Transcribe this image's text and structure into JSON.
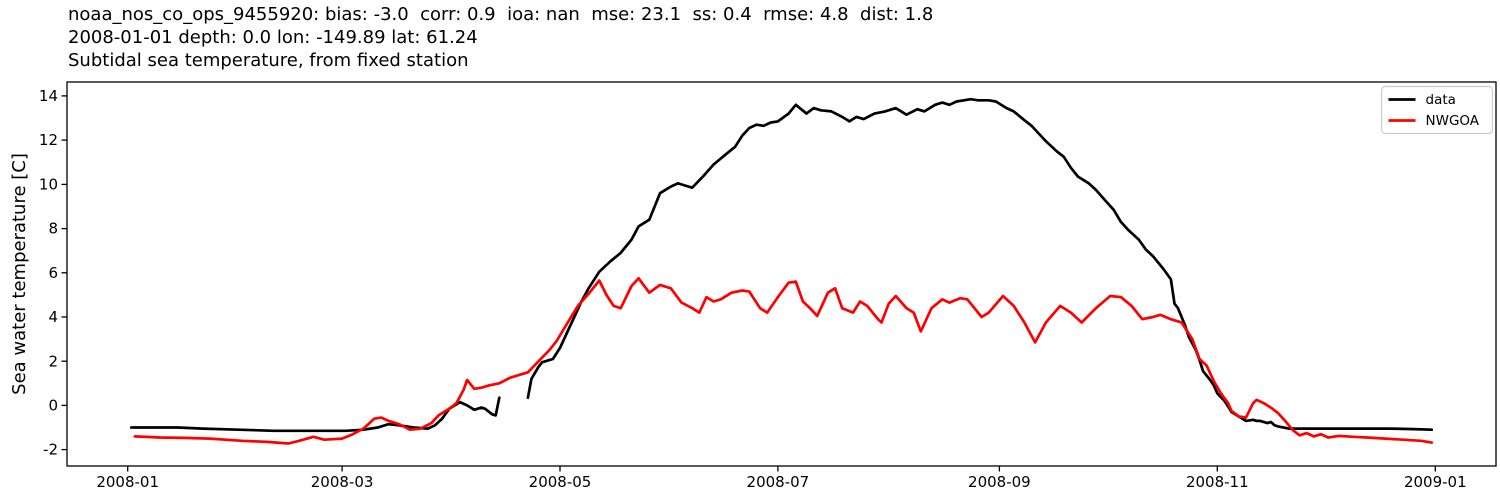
{
  "title": {
    "line1": "noaa_nos_co_ops_9455920: bias: -3.0  corr: 0.9  ioa: nan  mse: 23.1  ss: 0.4  rmse: 4.8  dist: 1.8",
    "line2": "2008-01-01 depth: 0.0 lon: -149.89 lat: 61.24",
    "line3": "Subtidal sea temperature, from fixed station"
  },
  "chart_data": {
    "type": "line",
    "ylabel": "Sea water temperature [C]",
    "xlabel": "",
    "grid": false,
    "legend_position": "upper right",
    "legend_border_color": "#cccccc",
    "ylim": [
      -2.74,
      14.63
    ],
    "xlim": [
      "2007-12-15",
      "2009-01-18"
    ],
    "yticks": [
      -2,
      0,
      2,
      4,
      6,
      8,
      10,
      12,
      14
    ],
    "xticks": [
      {
        "date": "2008-01-01",
        "label": "2008-01"
      },
      {
        "date": "2008-03-01",
        "label": "2008-03"
      },
      {
        "date": "2008-05-01",
        "label": "2008-05"
      },
      {
        "date": "2008-07-01",
        "label": "2008-07"
      },
      {
        "date": "2008-09-01",
        "label": "2008-09"
      },
      {
        "date": "2008-11-01",
        "label": "2008-11"
      },
      {
        "date": "2009-01-01",
        "label": "2009-01"
      }
    ],
    "series": [
      {
        "name": "data",
        "color": "#000000",
        "points": [
          [
            "2008-01-02",
            -1.0
          ],
          [
            "2008-01-08",
            -1.0
          ],
          [
            "2008-01-15",
            -1.0
          ],
          [
            "2008-01-22",
            -1.05
          ],
          [
            "2008-02-01",
            -1.1
          ],
          [
            "2008-02-11",
            -1.15
          ],
          [
            "2008-02-21",
            -1.15
          ],
          [
            "2008-03-02",
            -1.15
          ],
          [
            "2008-03-07",
            -1.1
          ],
          [
            "2008-03-11",
            -1.0
          ],
          [
            "2008-03-14",
            -0.85
          ],
          [
            "2008-03-17",
            -0.9
          ],
          [
            "2008-03-21",
            -1.0
          ],
          [
            "2008-03-25",
            -1.05
          ],
          [
            "2008-03-27",
            -0.9
          ],
          [
            "2008-03-29",
            -0.6
          ],
          [
            "2008-03-31",
            -0.15
          ],
          [
            "2008-04-02",
            0.05
          ],
          [
            "2008-04-03",
            0.15
          ],
          [
            "2008-04-05",
            0.0
          ],
          [
            "2008-04-07",
            -0.2
          ],
          [
            "2008-04-09",
            -0.1
          ],
          [
            "2008-04-10",
            -0.15
          ],
          [
            "2008-04-12",
            -0.4
          ],
          [
            "2008-04-13",
            -0.45
          ],
          [
            "2008-04-14",
            0.35
          ],
          [
            "2008-04-16",
            null
          ],
          [
            "2008-04-22",
            0.35
          ],
          [
            "2008-04-23",
            1.2
          ],
          [
            "2008-04-25",
            1.75
          ],
          [
            "2008-04-26",
            1.95
          ],
          [
            "2008-04-28",
            2.05
          ],
          [
            "2008-04-29",
            2.1
          ],
          [
            "2008-05-01",
            2.6
          ],
          [
            "2008-05-03",
            3.3
          ],
          [
            "2008-05-05",
            4.0
          ],
          [
            "2008-05-07",
            4.7
          ],
          [
            "2008-05-09",
            5.3
          ],
          [
            "2008-05-12",
            6.05
          ],
          [
            "2008-05-15",
            6.5
          ],
          [
            "2008-05-18",
            6.9
          ],
          [
            "2008-05-21",
            7.5
          ],
          [
            "2008-05-23",
            8.1
          ],
          [
            "2008-05-26",
            8.4
          ],
          [
            "2008-05-29",
            9.6
          ],
          [
            "2008-06-01",
            9.9
          ],
          [
            "2008-06-03",
            10.05
          ],
          [
            "2008-06-05",
            9.95
          ],
          [
            "2008-06-07",
            9.85
          ],
          [
            "2008-06-10",
            10.35
          ],
          [
            "2008-06-13",
            10.9
          ],
          [
            "2008-06-16",
            11.3
          ],
          [
            "2008-06-19",
            11.7
          ],
          [
            "2008-06-21",
            12.2
          ],
          [
            "2008-06-23",
            12.55
          ],
          [
            "2008-06-25",
            12.7
          ],
          [
            "2008-06-27",
            12.65
          ],
          [
            "2008-06-29",
            12.8
          ],
          [
            "2008-07-01",
            12.85
          ],
          [
            "2008-07-04",
            13.2
          ],
          [
            "2008-07-06",
            13.6
          ],
          [
            "2008-07-09",
            13.2
          ],
          [
            "2008-07-11",
            13.45
          ],
          [
            "2008-07-13",
            13.35
          ],
          [
            "2008-07-16",
            13.3
          ],
          [
            "2008-07-19",
            13.05
          ],
          [
            "2008-07-21",
            12.85
          ],
          [
            "2008-07-23",
            13.05
          ],
          [
            "2008-07-25",
            12.95
          ],
          [
            "2008-07-28",
            13.2
          ],
          [
            "2008-07-31",
            13.3
          ],
          [
            "2008-08-03",
            13.45
          ],
          [
            "2008-08-06",
            13.15
          ],
          [
            "2008-08-09",
            13.4
          ],
          [
            "2008-08-11",
            13.3
          ],
          [
            "2008-08-14",
            13.6
          ],
          [
            "2008-08-16",
            13.7
          ],
          [
            "2008-08-18",
            13.6
          ],
          [
            "2008-08-20",
            13.75
          ],
          [
            "2008-08-24",
            13.85
          ],
          [
            "2008-08-26",
            13.8
          ],
          [
            "2008-08-29",
            13.8
          ],
          [
            "2008-08-31",
            13.75
          ],
          [
            "2008-09-03",
            13.45
          ],
          [
            "2008-09-05",
            13.3
          ],
          [
            "2008-09-08",
            12.9
          ],
          [
            "2008-09-10",
            12.65
          ],
          [
            "2008-09-12",
            12.3
          ],
          [
            "2008-09-14",
            11.95
          ],
          [
            "2008-09-17",
            11.5
          ],
          [
            "2008-09-19",
            11.25
          ],
          [
            "2008-09-21",
            10.75
          ],
          [
            "2008-09-23",
            10.35
          ],
          [
            "2008-09-26",
            10.05
          ],
          [
            "2008-09-28",
            9.75
          ],
          [
            "2008-10-01",
            9.2
          ],
          [
            "2008-10-03",
            8.85
          ],
          [
            "2008-10-05",
            8.3
          ],
          [
            "2008-10-07",
            7.95
          ],
          [
            "2008-10-10",
            7.5
          ],
          [
            "2008-10-12",
            7.05
          ],
          [
            "2008-10-14",
            6.75
          ],
          [
            "2008-10-17",
            6.15
          ],
          [
            "2008-10-19",
            5.7
          ],
          [
            "2008-10-20",
            4.6
          ],
          [
            "2008-10-21",
            4.4
          ],
          [
            "2008-10-23",
            3.6
          ],
          [
            "2008-10-24",
            3.1
          ],
          [
            "2008-10-26",
            2.5
          ],
          [
            "2008-10-27",
            2.05
          ],
          [
            "2008-10-28",
            1.55
          ],
          [
            "2008-10-30",
            1.15
          ],
          [
            "2008-10-31",
            0.9
          ],
          [
            "2008-11-01",
            0.55
          ],
          [
            "2008-11-03",
            0.2
          ],
          [
            "2008-11-04",
            -0.05
          ],
          [
            "2008-11-05",
            -0.3
          ],
          [
            "2008-11-07",
            -0.5
          ],
          [
            "2008-11-08",
            -0.6
          ],
          [
            "2008-11-09",
            -0.7
          ],
          [
            "2008-11-11",
            -0.65
          ],
          [
            "2008-11-12",
            -0.7
          ],
          [
            "2008-11-13",
            -0.7
          ],
          [
            "2008-11-15",
            -0.8
          ],
          [
            "2008-11-16",
            -0.75
          ],
          [
            "2008-11-17",
            -0.9
          ],
          [
            "2008-11-18",
            -0.95
          ],
          [
            "2008-11-21",
            -1.05
          ],
          [
            "2008-11-28",
            -1.05
          ],
          [
            "2008-12-05",
            -1.05
          ],
          [
            "2008-12-12",
            -1.05
          ],
          [
            "2008-12-19",
            -1.05
          ],
          [
            "2008-12-26",
            -1.07
          ],
          [
            "2008-12-31",
            -1.1
          ]
        ]
      },
      {
        "name": "NWGOA",
        "color": "#ff0000",
        "points": [
          [
            "2008-01-03",
            -1.4
          ],
          [
            "2008-01-10",
            -1.45
          ],
          [
            "2008-01-17",
            -1.47
          ],
          [
            "2008-01-24",
            -1.5
          ],
          [
            "2008-02-02",
            -1.6
          ],
          [
            "2008-02-09",
            -1.65
          ],
          [
            "2008-02-15",
            -1.72
          ],
          [
            "2008-02-18",
            -1.6
          ],
          [
            "2008-02-22",
            -1.42
          ],
          [
            "2008-02-25",
            -1.55
          ],
          [
            "2008-03-01",
            -1.5
          ],
          [
            "2008-03-04",
            -1.3
          ],
          [
            "2008-03-07",
            -1.05
          ],
          [
            "2008-03-10",
            -0.6
          ],
          [
            "2008-03-12",
            -0.55
          ],
          [
            "2008-03-14",
            -0.7
          ],
          [
            "2008-03-17",
            -0.85
          ],
          [
            "2008-03-20",
            -1.1
          ],
          [
            "2008-03-23",
            -1.05
          ],
          [
            "2008-03-26",
            -0.8
          ],
          [
            "2008-03-28",
            -0.45
          ],
          [
            "2008-03-31",
            -0.15
          ],
          [
            "2008-04-02",
            0.1
          ],
          [
            "2008-04-04",
            0.7
          ],
          [
            "2008-04-05",
            1.15
          ],
          [
            "2008-04-07",
            0.75
          ],
          [
            "2008-04-09",
            0.8
          ],
          [
            "2008-04-11",
            0.9
          ],
          [
            "2008-04-14",
            1.0
          ],
          [
            "2008-04-17",
            1.25
          ],
          [
            "2008-04-19",
            1.35
          ],
          [
            "2008-04-22",
            1.5
          ],
          [
            "2008-04-25",
            2.0
          ],
          [
            "2008-04-28",
            2.5
          ],
          [
            "2008-04-30",
            2.9
          ],
          [
            "2008-05-03",
            3.7
          ],
          [
            "2008-05-06",
            4.5
          ],
          [
            "2008-05-09",
            5.05
          ],
          [
            "2008-05-12",
            5.65
          ],
          [
            "2008-05-14",
            5.0
          ],
          [
            "2008-05-16",
            4.5
          ],
          [
            "2008-05-18",
            4.4
          ],
          [
            "2008-05-21",
            5.4
          ],
          [
            "2008-05-23",
            5.75
          ],
          [
            "2008-05-26",
            5.1
          ],
          [
            "2008-05-29",
            5.45
          ],
          [
            "2008-06-01",
            5.3
          ],
          [
            "2008-06-04",
            4.65
          ],
          [
            "2008-06-07",
            4.4
          ],
          [
            "2008-06-09",
            4.2
          ],
          [
            "2008-06-11",
            4.9
          ],
          [
            "2008-06-13",
            4.7
          ],
          [
            "2008-06-15",
            4.8
          ],
          [
            "2008-06-18",
            5.1
          ],
          [
            "2008-06-21",
            5.2
          ],
          [
            "2008-06-23",
            5.15
          ],
          [
            "2008-06-26",
            4.4
          ],
          [
            "2008-06-28",
            4.2
          ],
          [
            "2008-07-01",
            4.9
          ],
          [
            "2008-07-04",
            5.55
          ],
          [
            "2008-07-06",
            5.6
          ],
          [
            "2008-07-08",
            4.7
          ],
          [
            "2008-07-10",
            4.4
          ],
          [
            "2008-07-12",
            4.05
          ],
          [
            "2008-07-15",
            5.1
          ],
          [
            "2008-07-17",
            5.3
          ],
          [
            "2008-07-19",
            4.4
          ],
          [
            "2008-07-22",
            4.2
          ],
          [
            "2008-07-24",
            4.7
          ],
          [
            "2008-07-26",
            4.5
          ],
          [
            "2008-07-29",
            3.9
          ],
          [
            "2008-07-30",
            3.75
          ],
          [
            "2008-08-01",
            4.6
          ],
          [
            "2008-08-03",
            4.95
          ],
          [
            "2008-08-06",
            4.4
          ],
          [
            "2008-08-08",
            4.2
          ],
          [
            "2008-08-10",
            3.35
          ],
          [
            "2008-08-13",
            4.4
          ],
          [
            "2008-08-16",
            4.8
          ],
          [
            "2008-08-18",
            4.65
          ],
          [
            "2008-08-21",
            4.85
          ],
          [
            "2008-08-23",
            4.8
          ],
          [
            "2008-08-27",
            4.0
          ],
          [
            "2008-08-29",
            4.2
          ],
          [
            "2008-09-02",
            4.95
          ],
          [
            "2008-09-05",
            4.5
          ],
          [
            "2008-09-08",
            3.75
          ],
          [
            "2008-09-11",
            2.85
          ],
          [
            "2008-09-14",
            3.75
          ],
          [
            "2008-09-18",
            4.5
          ],
          [
            "2008-09-21",
            4.2
          ],
          [
            "2008-09-24",
            3.75
          ],
          [
            "2008-09-28",
            4.4
          ],
          [
            "2008-10-02",
            4.95
          ],
          [
            "2008-10-05",
            4.9
          ],
          [
            "2008-10-08",
            4.5
          ],
          [
            "2008-10-11",
            3.9
          ],
          [
            "2008-10-14",
            4.0
          ],
          [
            "2008-10-16",
            4.1
          ],
          [
            "2008-10-19",
            3.9
          ],
          [
            "2008-10-22",
            3.75
          ],
          [
            "2008-10-25",
            3.0
          ],
          [
            "2008-10-27",
            2.1
          ],
          [
            "2008-10-29",
            1.8
          ],
          [
            "2008-10-31",
            1.1
          ],
          [
            "2008-11-02",
            0.55
          ],
          [
            "2008-11-04",
            0.1
          ],
          [
            "2008-11-05",
            -0.25
          ],
          [
            "2008-11-07",
            -0.5
          ],
          [
            "2008-11-09",
            -0.55
          ],
          [
            "2008-11-11",
            0.1
          ],
          [
            "2008-11-12",
            0.25
          ],
          [
            "2008-11-14",
            0.1
          ],
          [
            "2008-11-16",
            -0.1
          ],
          [
            "2008-11-18",
            -0.35
          ],
          [
            "2008-11-20",
            -0.7
          ],
          [
            "2008-11-22",
            -1.1
          ],
          [
            "2008-11-24",
            -1.35
          ],
          [
            "2008-11-26",
            -1.25
          ],
          [
            "2008-11-28",
            -1.4
          ],
          [
            "2008-11-30",
            -1.3
          ],
          [
            "2008-12-02",
            -1.45
          ],
          [
            "2008-12-05",
            -1.38
          ],
          [
            "2008-12-09",
            -1.42
          ],
          [
            "2008-12-13",
            -1.45
          ],
          [
            "2008-12-18",
            -1.5
          ],
          [
            "2008-12-23",
            -1.55
          ],
          [
            "2008-12-28",
            -1.6
          ],
          [
            "2008-12-31",
            -1.68
          ]
        ]
      }
    ]
  }
}
